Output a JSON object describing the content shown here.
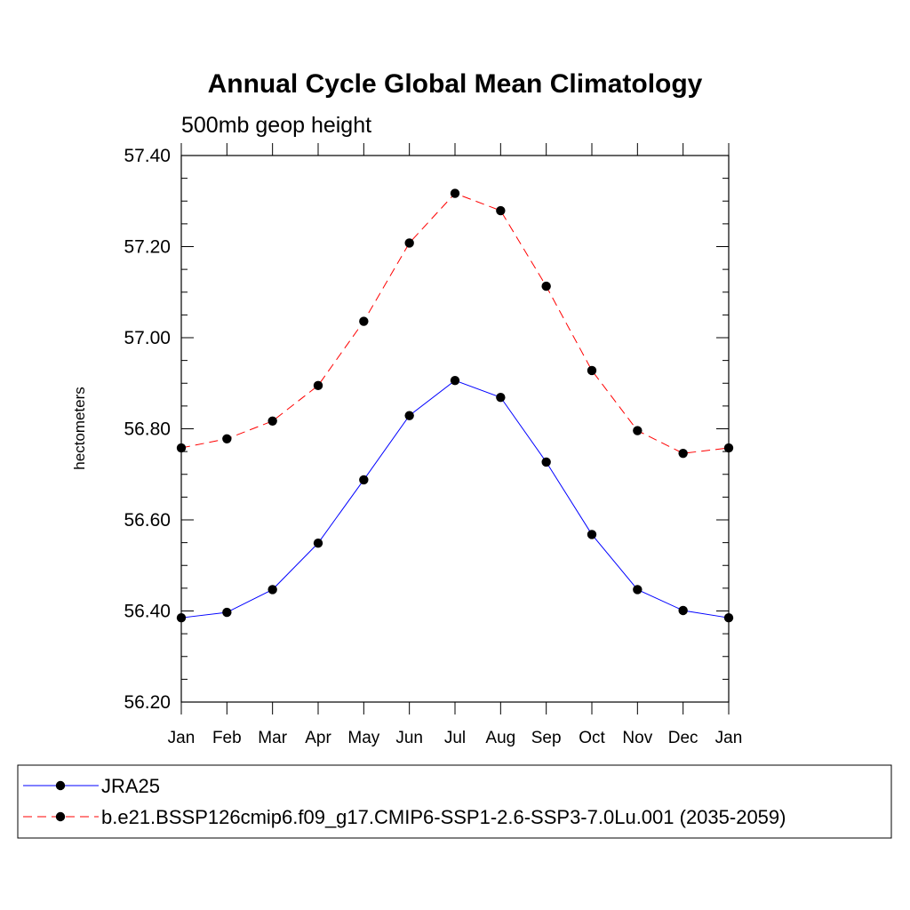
{
  "chart_data": {
    "type": "line",
    "title": "Annual Cycle Global Mean Climatology",
    "subtitle": "500mb geop height",
    "xlabel": "",
    "ylabel": "hectometers",
    "categories": [
      "Jan",
      "Feb",
      "Mar",
      "Apr",
      "May",
      "Jun",
      "Jul",
      "Aug",
      "Sep",
      "Oct",
      "Nov",
      "Dec",
      "Jan"
    ],
    "ylim": [
      56.2,
      57.4
    ],
    "yticks": [
      "56.20",
      "56.40",
      "56.60",
      "56.80",
      "57.00",
      "57.20",
      "57.40"
    ],
    "grid": false,
    "legend_position": "bottom",
    "series": [
      {
        "name": "JRA25",
        "color": "#0000ff",
        "line_style": "solid",
        "marker": "filled-circle",
        "values": [
          56.385,
          56.397,
          56.447,
          56.549,
          56.688,
          56.829,
          56.906,
          56.869,
          56.727,
          56.568,
          56.447,
          56.401,
          56.385
        ]
      },
      {
        "name": "b.e21.BSSP126cmip6.f09_g17.CMIP6-SSP1-2.6-SSP3-7.0Lu.001 (2035-2059)",
        "color": "#ff0000",
        "line_style": "dashed",
        "marker": "filled-circle",
        "values": [
          56.758,
          56.778,
          56.817,
          56.895,
          57.036,
          57.208,
          57.317,
          57.279,
          57.113,
          56.928,
          56.796,
          56.746,
          56.758
        ]
      }
    ]
  }
}
